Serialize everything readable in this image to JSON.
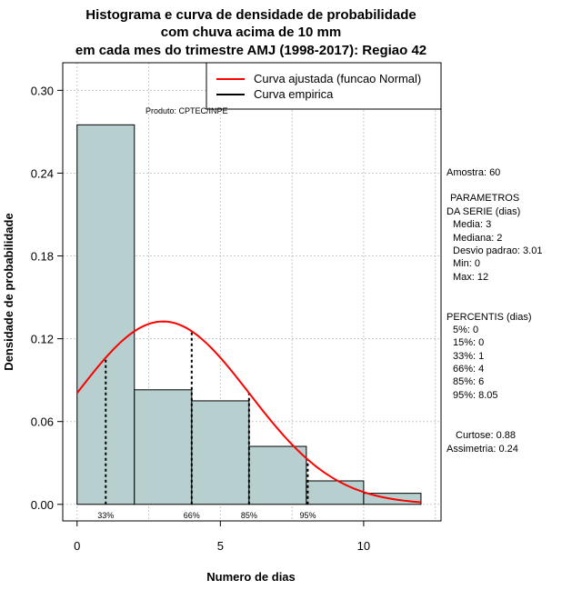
{
  "chart_data": {
    "type": "histogram",
    "title_lines": [
      "Histograma e curva de densidade de probabilidade",
      "com chuva acima de 10 mm",
      "em cada mes do trimestre AMJ (1998-2017): Regiao 42"
    ],
    "xlabel": "Numero de dias",
    "ylabel": "Densidade de probabilidade",
    "xlim": [
      -0.5,
      12.7
    ],
    "ylim": [
      -0.012,
      0.32
    ],
    "x_ticks": [
      0,
      5,
      10
    ],
    "y_ticks": [
      0.0,
      0.06,
      0.12,
      0.18,
      0.24,
      0.3
    ],
    "y_tick_labels": [
      "0.00",
      "0.06",
      "0.12",
      "0.18",
      "0.24",
      "0.30"
    ],
    "bins": [
      {
        "x0": 0,
        "x1": 2,
        "density": 0.275
      },
      {
        "x0": 2,
        "x1": 4,
        "density": 0.083
      },
      {
        "x0": 4,
        "x1": 6,
        "density": 0.075
      },
      {
        "x0": 6,
        "x1": 8,
        "density": 0.042
      },
      {
        "x0": 8,
        "x1": 10,
        "density": 0.017
      },
      {
        "x0": 10,
        "x1": 12,
        "density": 0.008
      }
    ],
    "normal_fit": {
      "mean": 3,
      "sd": 3.01,
      "x_from": 0,
      "x_to": 12
    },
    "percentile_lines": [
      {
        "x": 1,
        "label": "33%"
      },
      {
        "x": 4,
        "label": "66%"
      },
      {
        "x": 6,
        "label": "85%"
      },
      {
        "x": 8.05,
        "label": "95%"
      }
    ],
    "legend": [
      {
        "label": "Curva ajustada (funcao Normal)",
        "color": "#ff0000"
      },
      {
        "label": "Curva empirica",
        "color": "#000000"
      }
    ],
    "bar_color": "#b7cfcf",
    "grid": true
  },
  "product_label": "Produto: CPTEC/INPE",
  "side_panel": {
    "sample": "Amostra: 60",
    "params_title_1": "PARAMETROS",
    "params_title_2": "DA SERIE (dias)",
    "params": [
      "Media: 3",
      "Mediana: 2",
      "Desvio padrao: 3.01",
      "Min: 0",
      "Max: 12"
    ],
    "percentis_title": "PERCENTIS (dias)",
    "percentis": [
      "5%: 0",
      "15%: 0",
      "33%: 1",
      "66%: 4",
      "85%: 6",
      "95%: 8.05"
    ],
    "kurtosis": "Curtose: 0.88",
    "skewness": "Assimetria: 0.24"
  }
}
